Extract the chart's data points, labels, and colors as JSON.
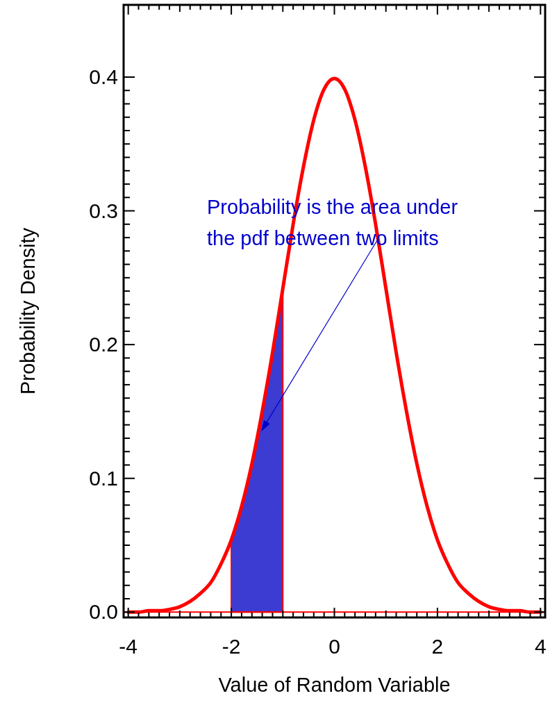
{
  "chart_data": {
    "type": "line",
    "xlabel": "Value of Random Variable",
    "ylabel": "Probability Density",
    "xlim": [
      -4.09,
      4.09
    ],
    "ylim": [
      -0.004,
      0.454
    ],
    "xticks": [
      -4,
      {
        "value": -3,
        "label": null
      },
      -2,
      {
        "value": -1,
        "label": null
      },
      0,
      {
        "value": 1,
        "label": null
      },
      2,
      {
        "value": 3,
        "label": null
      },
      4
    ],
    "yticks": [
      {
        "value": 0,
        "label": "0.0"
      },
      0.1,
      0.2,
      0.3,
      0.4
    ],
    "series": [
      {
        "type": "area",
        "color": "#3c3cd2",
        "x": [
          -2,
          -1.8,
          -1.6,
          -1.4,
          -1.2,
          -1
        ],
        "values": [
          0.054,
          0.079,
          0.111,
          0.15,
          0.194,
          0.242
        ]
      },
      {
        "type": "line",
        "color": "#ff0000",
        "x": [
          -4,
          -3.8,
          -3.6,
          -3.4,
          -3.2,
          -3,
          -2.8,
          -2.6,
          -2.4,
          -2.2,
          -2,
          -1.8,
          -1.6,
          -1.4,
          -1.2,
          -1,
          -0.8,
          -0.6,
          -0.4,
          -0.2,
          0,
          0.2,
          0.4,
          0.6,
          0.8,
          1,
          1.2,
          1.4,
          1.6,
          1.8,
          2,
          2.2,
          2.4,
          2.6,
          2.8,
          3,
          3.2,
          3.4,
          3.6,
          3.8,
          4
        ],
        "values": [
          0.0,
          0.0,
          0.001,
          0.001,
          0.002,
          0.004,
          0.008,
          0.014,
          0.022,
          0.036,
          0.054,
          0.079,
          0.111,
          0.15,
          0.194,
          0.242,
          0.29,
          0.333,
          0.368,
          0.391,
          0.399,
          0.391,
          0.368,
          0.333,
          0.29,
          0.242,
          0.194,
          0.15,
          0.111,
          0.079,
          0.054,
          0.036,
          0.022,
          0.014,
          0.008,
          0.004,
          0.002,
          0.001,
          0.001,
          0.0,
          0.0
        ]
      }
    ],
    "ref_lines": [
      {
        "axis": "y",
        "value": 0,
        "color": "#ff0000"
      }
    ],
    "annotations": [
      {
        "text": "Probability is the area under\nthe pdf between two limits",
        "x": -1.42,
        "y": 0.135
      }
    ]
  }
}
